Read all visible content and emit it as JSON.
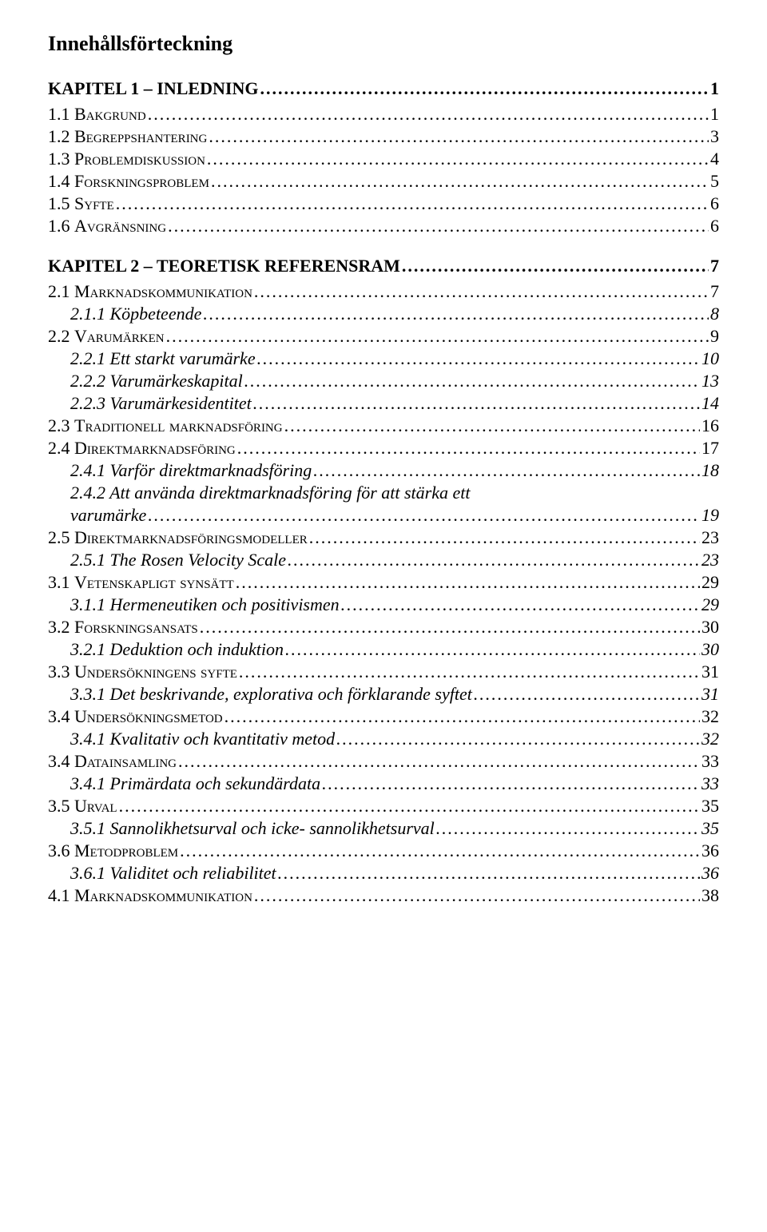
{
  "title": "Innehållsförteckning",
  "entries": [
    {
      "level": "chapter",
      "label": "KAPITEL 1 – INLEDNING",
      "page": "1"
    },
    {
      "level": "section",
      "num": "1.1 ",
      "txt": "Bakgrund",
      "page": "1"
    },
    {
      "level": "section",
      "num": "1.2 ",
      "txt": "Begreppshantering",
      "page": "3"
    },
    {
      "level": "section",
      "num": "1.3 ",
      "txt": "Problemdiskussion",
      "page": "4"
    },
    {
      "level": "section",
      "num": "1.4 ",
      "txt": "Forskningsproblem",
      "page": "5"
    },
    {
      "level": "section",
      "num": "1.5 ",
      "txt": "Syfte",
      "page": "6"
    },
    {
      "level": "section",
      "num": "1.6 ",
      "txt": "Avgränsning",
      "page": "6"
    },
    {
      "level": "chapter",
      "label": "KAPITEL 2 – TEORETISK REFERENSRAM",
      "page": "7"
    },
    {
      "level": "section",
      "num": "2.1 ",
      "txt": "Marknadskommunikation",
      "page": "7"
    },
    {
      "level": "sub",
      "label": "2.1.1 Köpbeteende",
      "page": "8"
    },
    {
      "level": "section",
      "num": "2.2 ",
      "txt": "Varumärken",
      "page": "9"
    },
    {
      "level": "sub",
      "label": "2.2.1 Ett starkt varumärke",
      "page": "10"
    },
    {
      "level": "sub",
      "label": "2.2.2 Varumärkeskapital",
      "page": "13"
    },
    {
      "level": "sub",
      "label": "2.2.3 Varumärkesidentitet",
      "page": "14"
    },
    {
      "level": "section",
      "num": "2.3 ",
      "txt": "Traditionell marknadsföring",
      "page": "16"
    },
    {
      "level": "section",
      "num": "2.4 ",
      "txt": "Direktmarknadsföring",
      "page": "17"
    },
    {
      "level": "sub",
      "label": "2.4.1 Varför direktmarknadsföring",
      "page": "18"
    },
    {
      "level": "subwrap",
      "first": "2.4.2 Att använda direktmarknadsföring för att stärka ett",
      "second": "varumärke",
      "page": "19"
    },
    {
      "level": "section",
      "num": "2.5 ",
      "txt": "Direktmarknadsföringsmodeller",
      "page": "23"
    },
    {
      "level": "sub",
      "label": "2.5.1 The Rosen Velocity Scale",
      "page": "23"
    },
    {
      "level": "section",
      "num": "3.1 ",
      "txt": "Vetenskapligt synsätt",
      "page": "29"
    },
    {
      "level": "sub",
      "label": "3.1.1 Hermeneutiken och positivismen",
      "page": "29"
    },
    {
      "level": "section",
      "num": "3.2 ",
      "txt": "Forskningsansats",
      "page": "30"
    },
    {
      "level": "sub",
      "label": "3.2.1 Deduktion och induktion",
      "page": "30"
    },
    {
      "level": "section",
      "num": "3.3  ",
      "txt": "Undersökningens syfte",
      "page": "31"
    },
    {
      "level": "sub",
      "label": "3.3.1 Det beskrivande, explorativa och förklarande syftet",
      "page": "31"
    },
    {
      "level": "section",
      "num": "3.4 ",
      "txt": "Undersökningsmetod",
      "page": "32"
    },
    {
      "level": "sub",
      "label": "3.4.1 Kvalitativ och kvantitativ metod",
      "page": "32"
    },
    {
      "level": "section",
      "num": "3.4 ",
      "txt": "Datainsamling",
      "page": "33"
    },
    {
      "level": "sub",
      "label": "3.4.1 Primärdata och sekundärdata",
      "page": "33"
    },
    {
      "level": "section",
      "num": "3.5 ",
      "txt": "Urval",
      "page": "35"
    },
    {
      "level": "sub",
      "label": "3.5.1 Sannolikhetsurval och icke- sannolikhetsurval",
      "page": "35"
    },
    {
      "level": "section",
      "num": "3.6 ",
      "txt": "Metodproblem",
      "page": "36"
    },
    {
      "level": "sub",
      "label": "3.6.1 Validitet och reliabilitet",
      "page": "36"
    },
    {
      "level": "section",
      "num": "4.1 ",
      "txt": "Marknadskommunikation",
      "page": "38"
    }
  ]
}
